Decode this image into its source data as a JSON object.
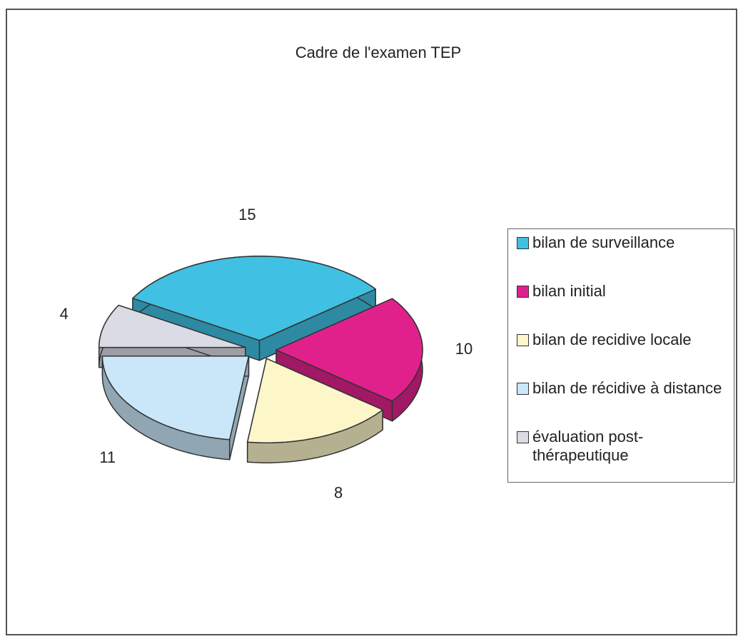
{
  "chart_data": {
    "type": "pie",
    "title": "Cadre de l'examen TEP",
    "categories": [
      "bilan de surveillance",
      "bilan initial",
      "bilan de recidive locale",
      "bilan de récidive à distance",
      "évaluation post-thérapeutique"
    ],
    "values": [
      15,
      10,
      8,
      11,
      4
    ],
    "colors": [
      "#40c0e2",
      "#e0218c",
      "#fcf6c8",
      "#c9e7f8",
      "#dadbe5"
    ],
    "legend": "right"
  }
}
